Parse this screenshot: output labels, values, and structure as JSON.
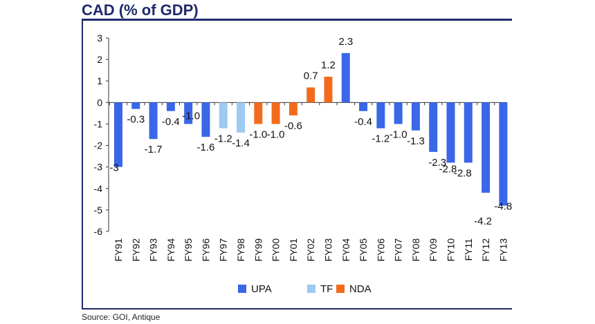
{
  "title": "CAD (% of GDP)",
  "source": "Source: GOI, Antique",
  "colors": {
    "UPA": "#3a67e8",
    "TF": "#9ec9f2",
    "NDA": "#f26b1d",
    "axis": "#333333"
  },
  "chart_data": {
    "type": "bar",
    "title": "CAD (% of GDP)",
    "xlabel": "",
    "ylabel": "",
    "ylim": [
      -6,
      3
    ],
    "yticks": [
      3,
      2,
      1,
      0,
      -1,
      -2,
      -3,
      -4,
      -5,
      -6
    ],
    "grid": false,
    "legend_position": "bottom",
    "legend": [
      "UPA",
      "TF",
      "NDA"
    ],
    "categories": [
      "FY91",
      "FY92",
      "FY93",
      "FY94",
      "FY95",
      "FY96",
      "FY97",
      "FY98",
      "FY99",
      "FY00",
      "FY01",
      "FY02",
      "FY03",
      "FY04",
      "FY05",
      "FY06",
      "FY07",
      "FY08",
      "FY09",
      "FY10",
      "FY11",
      "FY12",
      "FY13"
    ],
    "values": [
      -3.0,
      -0.3,
      -1.7,
      -0.4,
      -1.0,
      -1.6,
      -1.2,
      -1.4,
      -1.0,
      -1.0,
      -0.6,
      0.7,
      1.2,
      2.3,
      -0.4,
      -1.2,
      -1.0,
      -1.3,
      -2.3,
      -2.8,
      -2.8,
      -4.2,
      -4.8
    ],
    "groups": [
      "UPA",
      "UPA",
      "UPA",
      "UPA",
      "UPA",
      "UPA",
      "TF",
      "TF",
      "NDA",
      "NDA",
      "NDA",
      "NDA",
      "NDA",
      "UPA",
      "UPA",
      "UPA",
      "UPA",
      "UPA",
      "UPA",
      "UPA",
      "UPA",
      "UPA",
      "UPA"
    ],
    "labels": [
      "-3",
      "-0.3",
      "-1.7",
      "-0.4",
      "-1.0",
      "-1.6",
      "-1.2",
      "-1.4",
      "-1.0",
      "-1.0",
      "-0.6",
      "0.7",
      "1.2",
      "2.3",
      "-0.4",
      "-1.2",
      "-1.0",
      "-1.3",
      "-2.3",
      "-2.8",
      "-2.8",
      "-4.2",
      "-4.8"
    ]
  }
}
